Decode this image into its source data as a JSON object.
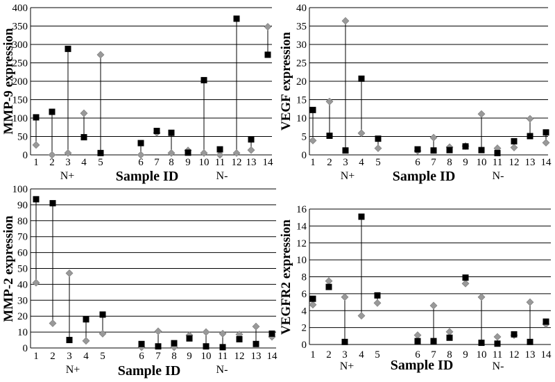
{
  "chart_data": [
    {
      "type": "scatter",
      "ylabel": "MMP-9 expression",
      "xlabel": "Sample ID",
      "ylim": [
        0,
        400
      ],
      "yticks": [
        0,
        50,
        100,
        150,
        200,
        250,
        300,
        350,
        400
      ],
      "grid": true,
      "categories": [
        "1",
        "2",
        "3",
        "4",
        "5",
        "6",
        "7",
        "8",
        "9",
        "10",
        "11",
        "12",
        "13",
        "14"
      ],
      "groups": [
        "N+",
        "N-"
      ],
      "series": [
        {
          "marker": "square",
          "color": "#000000",
          "values": [
            102,
            117,
            288,
            48,
            5,
            32,
            65,
            60,
            6,
            203,
            15,
            370,
            42,
            272
          ]
        },
        {
          "marker": "diamond",
          "color": "#999999",
          "values": [
            27,
            0,
            5,
            113,
            272,
            0,
            60,
            5,
            12,
            5,
            0,
            5,
            13,
            348
          ]
        }
      ]
    },
    {
      "type": "scatter",
      "ylabel": "VEGF expression",
      "xlabel": "Sample ID",
      "ylim": [
        0,
        40
      ],
      "yticks": [
        0,
        5,
        10,
        15,
        20,
        25,
        30,
        35,
        40
      ],
      "grid": true,
      "categories": [
        "1",
        "2",
        "3",
        "4",
        "5",
        "6",
        "7",
        "8",
        "9",
        "10",
        "11",
        "12",
        "13",
        "14"
      ],
      "groups": [
        "N+",
        "N-"
      ],
      "series": [
        {
          "marker": "square",
          "color": "#000000",
          "values": [
            12.2,
            5.2,
            1.2,
            20.7,
            4.4,
            1.5,
            1.2,
            1.3,
            2.3,
            1.3,
            0.5,
            3.7,
            5.1,
            6.1
          ]
        },
        {
          "marker": "diamond",
          "color": "#999999",
          "values": [
            3.9,
            14.5,
            36.4,
            5.9,
            1.8,
            1.1,
            4.7,
            2.1,
            2.4,
            11.1,
            1.8,
            2.0,
            9.8,
            3.3
          ]
        }
      ]
    },
    {
      "type": "scatter",
      "ylabel": "MMP-2 expression",
      "xlabel": "Sample ID",
      "ylim": [
        0,
        100
      ],
      "yticks": [
        0,
        10,
        20,
        30,
        40,
        50,
        60,
        70,
        80,
        90,
        100
      ],
      "grid": true,
      "categories": [
        "1",
        "2",
        "3",
        "4",
        "5",
        "6",
        "7",
        "8",
        "9",
        "10",
        "11",
        "12",
        "13",
        "14"
      ],
      "groups": [
        "N+",
        "N-"
      ],
      "series": [
        {
          "marker": "square",
          "color": "#000000",
          "values": [
            93.5,
            91,
            5,
            18,
            21,
            2.5,
            1,
            3,
            6,
            1,
            0.5,
            5.5,
            2.5,
            9
          ]
        },
        {
          "marker": "diamond",
          "color": "#999999",
          "values": [
            41,
            15.5,
            47,
            4.5,
            9,
            0.5,
            10.5,
            0.5,
            8,
            10,
            9,
            8.5,
            13.5,
            7
          ]
        }
      ]
    },
    {
      "type": "scatter",
      "ylabel": "VEGFR2 expression",
      "xlabel": "Sample ID",
      "ylim": [
        0,
        16
      ],
      "yticks": [
        0,
        2,
        4,
        6,
        8,
        10,
        12,
        14,
        16
      ],
      "grid": true,
      "categories": [
        "1",
        "2",
        "3",
        "4",
        "5",
        "6",
        "7",
        "8",
        "9",
        "10",
        "11",
        "12",
        "13",
        "14"
      ],
      "groups": [
        "N+",
        "N-"
      ],
      "series": [
        {
          "marker": "square",
          "color": "#000000",
          "values": [
            5.4,
            6.8,
            0.3,
            15.1,
            5.8,
            0.4,
            0.4,
            0.8,
            7.9,
            0.2,
            0.1,
            1.2,
            0.3,
            2.7
          ]
        },
        {
          "marker": "diamond",
          "color": "#999999",
          "values": [
            4.7,
            7.5,
            5.6,
            3.4,
            4.9,
            1.1,
            4.6,
            1.5,
            7.2,
            5.6,
            0.9,
            1.1,
            5.0,
            2.4
          ]
        }
      ]
    }
  ]
}
